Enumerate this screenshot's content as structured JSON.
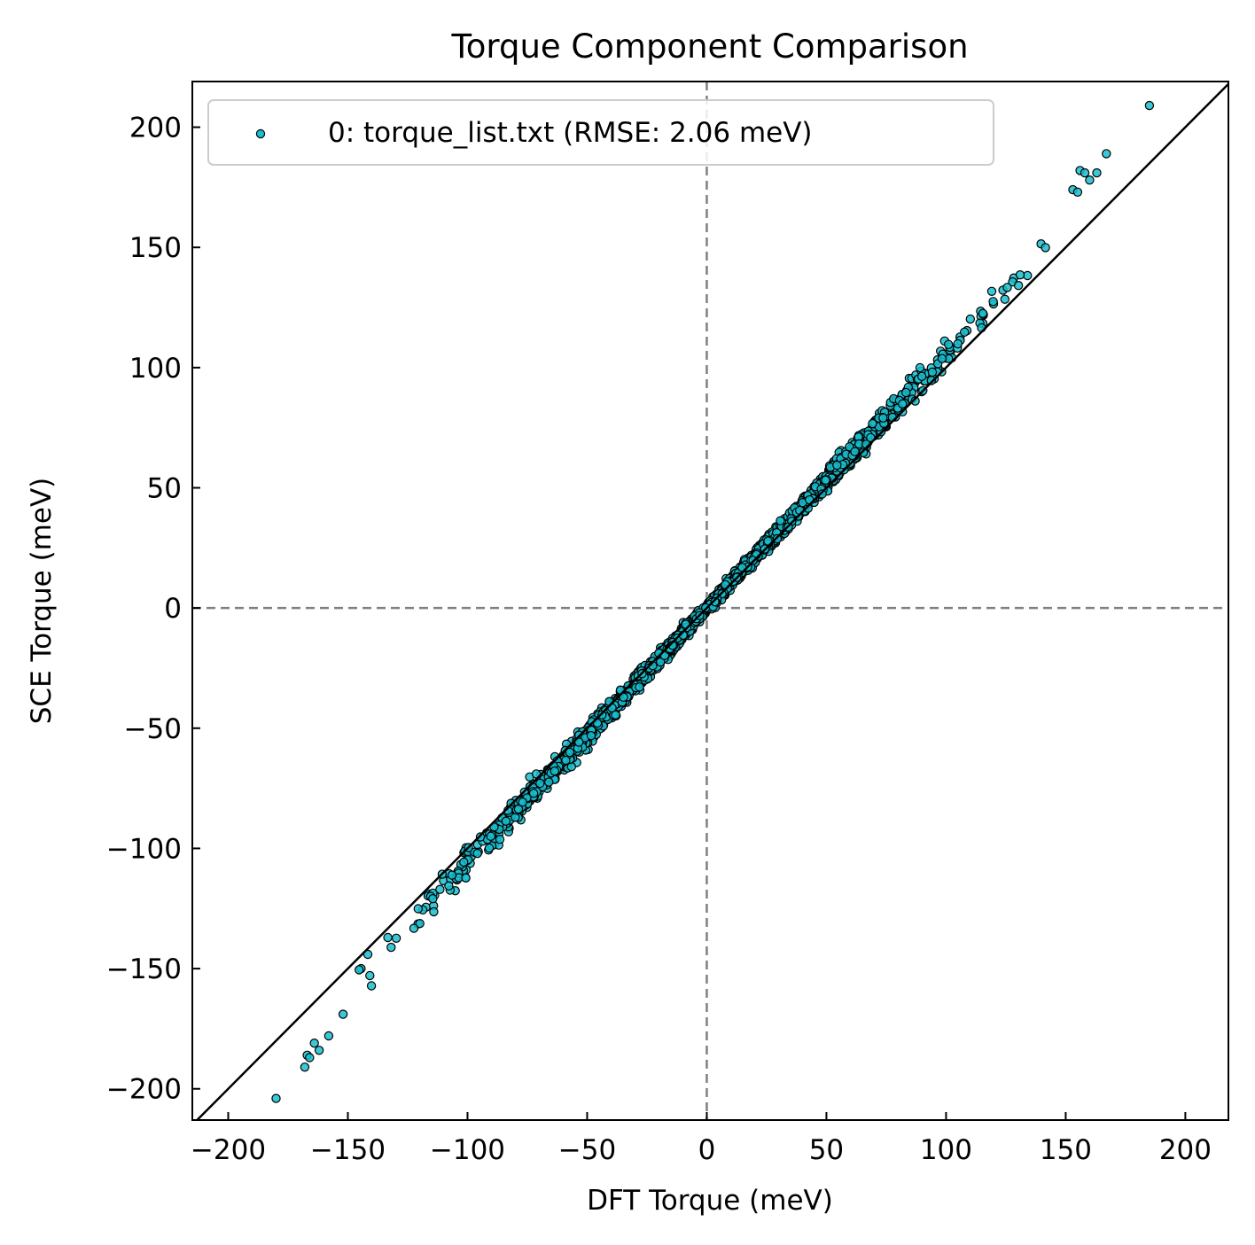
{
  "chart_data": {
    "type": "scatter",
    "title": "Torque Component Comparison",
    "xlabel": "DFT Torque (meV)",
    "ylabel": "SCE Torque (meV)",
    "xlim": [
      -215,
      218
    ],
    "ylim": [
      -213,
      219
    ],
    "xticks": [
      -200,
      -150,
      -100,
      -50,
      0,
      50,
      100,
      150,
      200
    ],
    "yticks": [
      -200,
      -150,
      -100,
      -50,
      0,
      50,
      100,
      150,
      200
    ],
    "grid": false,
    "legend_position": "top-left",
    "reference_line": "y = x",
    "zero_lines": "dashed gray at x = 0 and y = 0",
    "marker_color": "#17becf",
    "marker_edge_color": "#000000",
    "series": [
      {
        "name": "0: torque_list.txt (RMSE: 2.06 meV)",
        "fit_slope": 1.06,
        "n_points": 2400,
        "highlighted_points": [
          {
            "x": -180,
            "y": -204
          },
          {
            "x": -168,
            "y": -191
          },
          {
            "x": -167,
            "y": -186
          },
          {
            "x": -166,
            "y": -187
          },
          {
            "x": -164,
            "y": -181
          },
          {
            "x": -162,
            "y": -184
          },
          {
            "x": -158,
            "y": -178
          },
          {
            "x": -152,
            "y": -169
          },
          {
            "x": 153,
            "y": 174
          },
          {
            "x": 155,
            "y": 173
          },
          {
            "x": 156,
            "y": 182
          },
          {
            "x": 158,
            "y": 181
          },
          {
            "x": 160,
            "y": 178
          },
          {
            "x": 163,
            "y": 181
          },
          {
            "x": 167,
            "y": 189
          },
          {
            "x": 185,
            "y": 209
          }
        ]
      }
    ]
  }
}
